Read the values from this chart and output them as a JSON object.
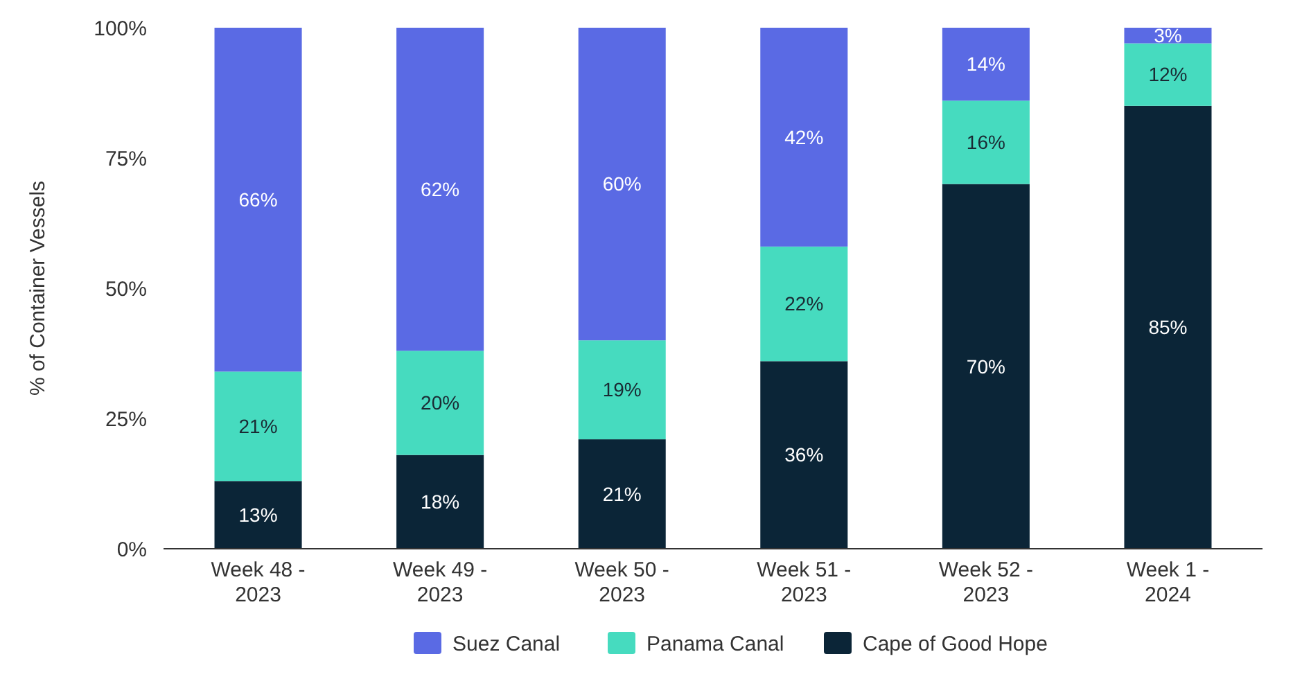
{
  "chart_data": {
    "type": "bar",
    "stacked": true,
    "ylabel": "% of Container Vessels",
    "categories": [
      "Week 48 - 2023",
      "Week 49 - 2023",
      "Week 50 - 2023",
      "Week 51 - 2023",
      "Week 52 - 2023",
      "Week 1 - 2024"
    ],
    "ylim": [
      0,
      100
    ],
    "yticks": [
      {
        "value": 0,
        "label": "0%"
      },
      {
        "value": 25,
        "label": "25%"
      },
      {
        "value": 50,
        "label": "50%"
      },
      {
        "value": 75,
        "label": "75%"
      },
      {
        "value": 100,
        "label": "100%"
      }
    ],
    "legend": "bottom",
    "series": [
      {
        "name": "Cape of Good Hope",
        "color": "#0b2537",
        "values": [
          13,
          18,
          21,
          36,
          70,
          85
        ],
        "value_labels": [
          "13%",
          "18%",
          "21%",
          "36%",
          "70%",
          "85%"
        ]
      },
      {
        "name": "Panama Canal",
        "color": "#46dbbf",
        "values": [
          21,
          20,
          19,
          22,
          16,
          12
        ],
        "value_labels": [
          "21%",
          "20%",
          "19%",
          "22%",
          "16%",
          "12%"
        ]
      },
      {
        "name": "Suez Canal",
        "color": "#5a6ae4",
        "values": [
          66,
          62,
          60,
          42,
          14,
          3
        ],
        "value_labels": [
          "66%",
          "62%",
          "60%",
          "42%",
          "14%",
          "3%"
        ]
      }
    ]
  }
}
